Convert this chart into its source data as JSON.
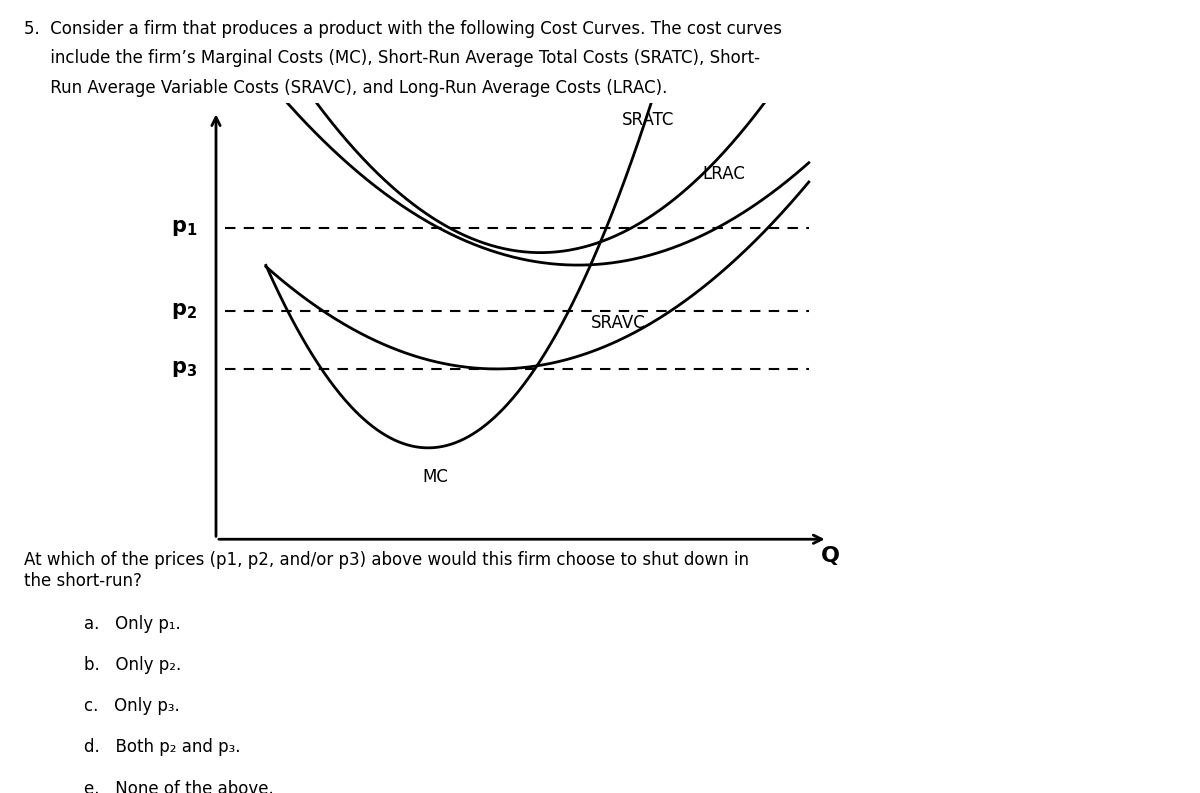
{
  "title_line1": "5.  Consider a firm that produces a product with the following Cost Curves. The cost curves",
  "title_line2": "     include the firm’s Marginal Costs (MC), Short-Run Average Total Costs (SRATC), Short-",
  "title_line3": "     Run Average Variable Costs (SRAVC), and Long-Run Average Costs (LRAC).",
  "question_text": "At which of the prices (p1, p2, and/or p3) above would this firm choose to shut down in\nthe short-run?",
  "choices": [
    "a.   Only p₁.",
    "b.   Only p₂.",
    "c.   Only p₃.",
    "d.   Both p₂ and p₃.",
    "e.   None of the above."
  ],
  "background": "#ffffff",
  "x_label": "Q",
  "p1": 7.5,
  "p2": 5.5,
  "p3": 4.1
}
